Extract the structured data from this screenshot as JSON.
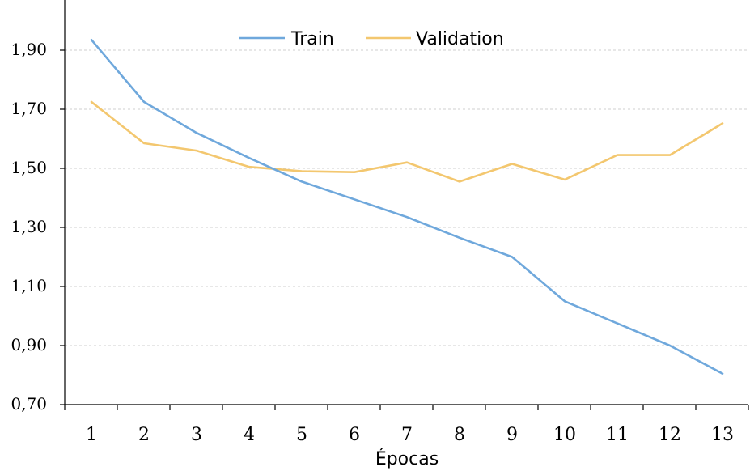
{
  "chart_data": {
    "type": "line",
    "title": "",
    "xlabel": "Épocas",
    "ylabel": "",
    "categories": [
      "1",
      "2",
      "3",
      "4",
      "5",
      "6",
      "7",
      "8",
      "9",
      "10",
      "11",
      "12",
      "13"
    ],
    "yticks": [
      "0,70",
      "0,90",
      "1,10",
      "1,30",
      "1,50",
      "1,70",
      "1,90"
    ],
    "ylim": [
      0.7,
      2.0
    ],
    "grid": true,
    "legend_position": "top-center",
    "series": [
      {
        "name": "Train",
        "color": "#6fa8dc",
        "values": [
          1.935,
          1.725,
          1.62,
          1.535,
          1.455,
          1.395,
          1.335,
          1.265,
          1.2,
          1.05,
          0.975,
          0.9,
          0.805
        ]
      },
      {
        "name": "Validation",
        "color": "#f3c76f",
        "values": [
          1.725,
          1.585,
          1.56,
          1.505,
          1.49,
          1.487,
          1.52,
          1.455,
          1.515,
          1.462,
          1.545,
          1.545,
          1.652
        ]
      }
    ]
  }
}
